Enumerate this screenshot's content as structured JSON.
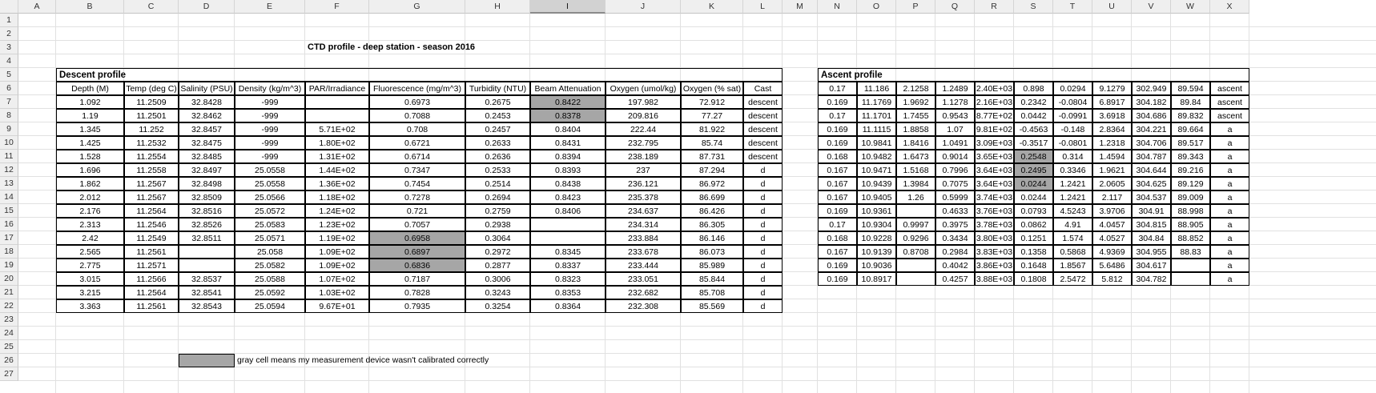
{
  "columns": [
    "A",
    "B",
    "C",
    "D",
    "E",
    "F",
    "G",
    "H",
    "I",
    "J",
    "K",
    "L",
    "M",
    "N",
    "O",
    "P",
    "Q",
    "R",
    "S",
    "T",
    "U",
    "V",
    "W",
    "X"
  ],
  "selected_column": "I",
  "rows": [
    "1",
    "2",
    "3",
    "4",
    "5",
    "6",
    "7",
    "8",
    "9",
    "10",
    "11",
    "12",
    "13",
    "14",
    "15",
    "16",
    "17",
    "18",
    "19",
    "20",
    "21",
    "22",
    "23",
    "24",
    "25",
    "26",
    "27"
  ],
  "title": "CTD profile - deep station - season 2016",
  "descent": {
    "section_label": "Descent profile",
    "headers": [
      "Depth (M)",
      "Temp (deg C)",
      "Salinity (PSU)",
      "Density (kg/m^3)",
      "PAR/Irradiance",
      "Fluorescence (mg/m^3)",
      "Turbidity (NTU)",
      "Beam Attenuation",
      "Oxygen (umol/kg)",
      "Oxygen (% sat)",
      "Cast"
    ],
    "rows": [
      [
        "1.092",
        "11.2509",
        "32.8428",
        "-999",
        "",
        "0.6973",
        "0.2675",
        "0.8422",
        "197.982",
        "72.912",
        "descent"
      ],
      [
        "1.19",
        "11.2501",
        "32.8462",
        "-999",
        "",
        "0.7088",
        "0.2453",
        "0.8378",
        "209.816",
        "77.27",
        "descent"
      ],
      [
        "1.345",
        "11.252",
        "32.8457",
        "-999",
        "5.71E+02",
        "0.708",
        "0.2457",
        "0.8404",
        "222.44",
        "81.922",
        "descent"
      ],
      [
        "1.425",
        "11.2532",
        "32.8475",
        "-999",
        "1.80E+02",
        "0.6721",
        "0.2633",
        "0.8431",
        "232.795",
        "85.74",
        "descent"
      ],
      [
        "1.528",
        "11.2554",
        "32.8485",
        "-999",
        "1.31E+02",
        "0.6714",
        "0.2636",
        "0.8394",
        "238.189",
        "87.731",
        "descent"
      ],
      [
        "1.696",
        "11.2558",
        "32.8497",
        "25.0558",
        "1.44E+02",
        "0.7347",
        "0.2533",
        "0.8393",
        "237",
        "87.294",
        "d"
      ],
      [
        "1.862",
        "11.2567",
        "32.8498",
        "25.0558",
        "1.36E+02",
        "0.7454",
        "0.2514",
        "0.8438",
        "236.121",
        "86.972",
        "d"
      ],
      [
        "2.012",
        "11.2567",
        "32.8509",
        "25.0566",
        "1.18E+02",
        "0.7278",
        "0.2694",
        "0.8423",
        "235.378",
        "86.699",
        "d"
      ],
      [
        "2.176",
        "11.2564",
        "32.8516",
        "25.0572",
        "1.24E+02",
        "0.721",
        "0.2759",
        "0.8406",
        "234.637",
        "86.426",
        "d"
      ],
      [
        "2.313",
        "11.2546",
        "32.8526",
        "25.0583",
        "1.23E+02",
        "0.7057",
        "0.2938",
        "",
        "234.314",
        "86.305",
        "d"
      ],
      [
        "2.42",
        "11.2549",
        "32.8511",
        "25.0571",
        "1.19E+02",
        "0.6958",
        "0.3064",
        "",
        "233.884",
        "86.146",
        "d"
      ],
      [
        "2.565",
        "11.2561",
        "",
        "25.058",
        "1.09E+02",
        "0.6897",
        "0.2972",
        "0.8345",
        "233.678",
        "86.073",
        "d"
      ],
      [
        "2.775",
        "11.2571",
        "",
        "25.0582",
        "1.09E+02",
        "0.6836",
        "0.2877",
        "0.8337",
        "233.444",
        "85.989",
        "d"
      ],
      [
        "3.015",
        "11.2566",
        "32.8537",
        "25.0588",
        "1.07E+02",
        "0.7187",
        "0.3006",
        "0.8323",
        "233.051",
        "85.844",
        "d"
      ],
      [
        "3.215",
        "11.2564",
        "32.8541",
        "25.0592",
        "1.03E+02",
        "0.7828",
        "0.3243",
        "0.8353",
        "232.682",
        "85.708",
        "d"
      ],
      [
        "3.363",
        "11.2561",
        "32.8543",
        "25.0594",
        "9.67E+01",
        "0.7935",
        "0.3254",
        "0.8364",
        "232.308",
        "85.569",
        "d"
      ]
    ],
    "gray_cells": [
      [
        1,
        7
      ],
      [
        2,
        7
      ],
      [
        11,
        5
      ],
      [
        12,
        5
      ],
      [
        13,
        5
      ]
    ]
  },
  "ascent": {
    "section_label": "Ascent profile",
    "rows": [
      [
        "0.17",
        "11.186",
        "2.1258",
        "1.2489",
        "2.40E+03",
        "0.898",
        "0.0294",
        "9.1279",
        "302.949",
        "89.594",
        "ascent"
      ],
      [
        "0.169",
        "11.1769",
        "1.9692",
        "1.1278",
        "2.16E+03",
        "0.2342",
        "-0.0804",
        "6.8917",
        "304.182",
        "89.84",
        "ascent"
      ],
      [
        "0.17",
        "11.1701",
        "1.7455",
        "0.9543",
        "8.77E+02",
        "0.0442",
        "-0.0991",
        "3.6918",
        "304.686",
        "89.832",
        "ascent"
      ],
      [
        "0.169",
        "11.1115",
        "1.8858",
        "1.07",
        "9.81E+02",
        "-0.4563",
        "-0.148",
        "2.8364",
        "304.221",
        "89.664",
        "a"
      ],
      [
        "0.169",
        "10.9841",
        "1.8416",
        "1.0491",
        "3.09E+03",
        "-0.3517",
        "-0.0801",
        "1.2318",
        "304.706",
        "89.517",
        "a"
      ],
      [
        "0.168",
        "10.9482",
        "1.6473",
        "0.9014",
        "3.65E+03",
        "0.2548",
        "0.314",
        "1.4594",
        "304.787",
        "89.343",
        "a"
      ],
      [
        "0.167",
        "10.9471",
        "1.5168",
        "0.7996",
        "3.64E+03",
        "0.2495",
        "0.3346",
        "1.9621",
        "304.644",
        "89.216",
        "a"
      ],
      [
        "0.167",
        "10.9439",
        "1.3984",
        "0.7075",
        "3.64E+03",
        "0.0244",
        "1.2421",
        "2.0605",
        "304.625",
        "89.129",
        "a"
      ],
      [
        "0.167",
        "10.9405",
        "1.26",
        "0.5999",
        "3.74E+03",
        "0.0244",
        "1.2421",
        "2.117",
        "304.537",
        "89.009",
        "a"
      ],
      [
        "0.169",
        "10.9361",
        "",
        "0.4633",
        "3.76E+03",
        "0.0793",
        "4.5243",
        "3.9706",
        "304.91",
        "88.998",
        "a"
      ],
      [
        "0.17",
        "10.9304",
        "0.9997",
        "0.3975",
        "3.78E+03",
        "0.0862",
        "4.91",
        "4.0457",
        "304.815",
        "88.905",
        "a"
      ],
      [
        "0.168",
        "10.9228",
        "0.9296",
        "0.3434",
        "3.80E+03",
        "0.1251",
        "1.574",
        "4.0527",
        "304.84",
        "88.852",
        "a"
      ],
      [
        "0.167",
        "10.9139",
        "0.8708",
        "0.2984",
        "3.83E+03",
        "0.1358",
        "0.5868",
        "4.9369",
        "304.955",
        "88.83",
        "a"
      ],
      [
        "0.169",
        "10.9036",
        "",
        "0.4042",
        "3.86E+03",
        "0.1648",
        "1.8567",
        "5.6486",
        "304.617",
        "",
        "a"
      ],
      [
        "0.169",
        "10.8917",
        "",
        "0.4257",
        "3.88E+03",
        "0.1808",
        "2.5472",
        "5.812",
        "304.782",
        "",
        "a"
      ]
    ],
    "gray_cells": [
      [
        5,
        5
      ],
      [
        6,
        5
      ],
      [
        7,
        5
      ]
    ]
  },
  "legend": {
    "text": "gray cell means my measurement device wasn't calibrated correctly",
    "swatch_color": "#a6a6a6"
  }
}
